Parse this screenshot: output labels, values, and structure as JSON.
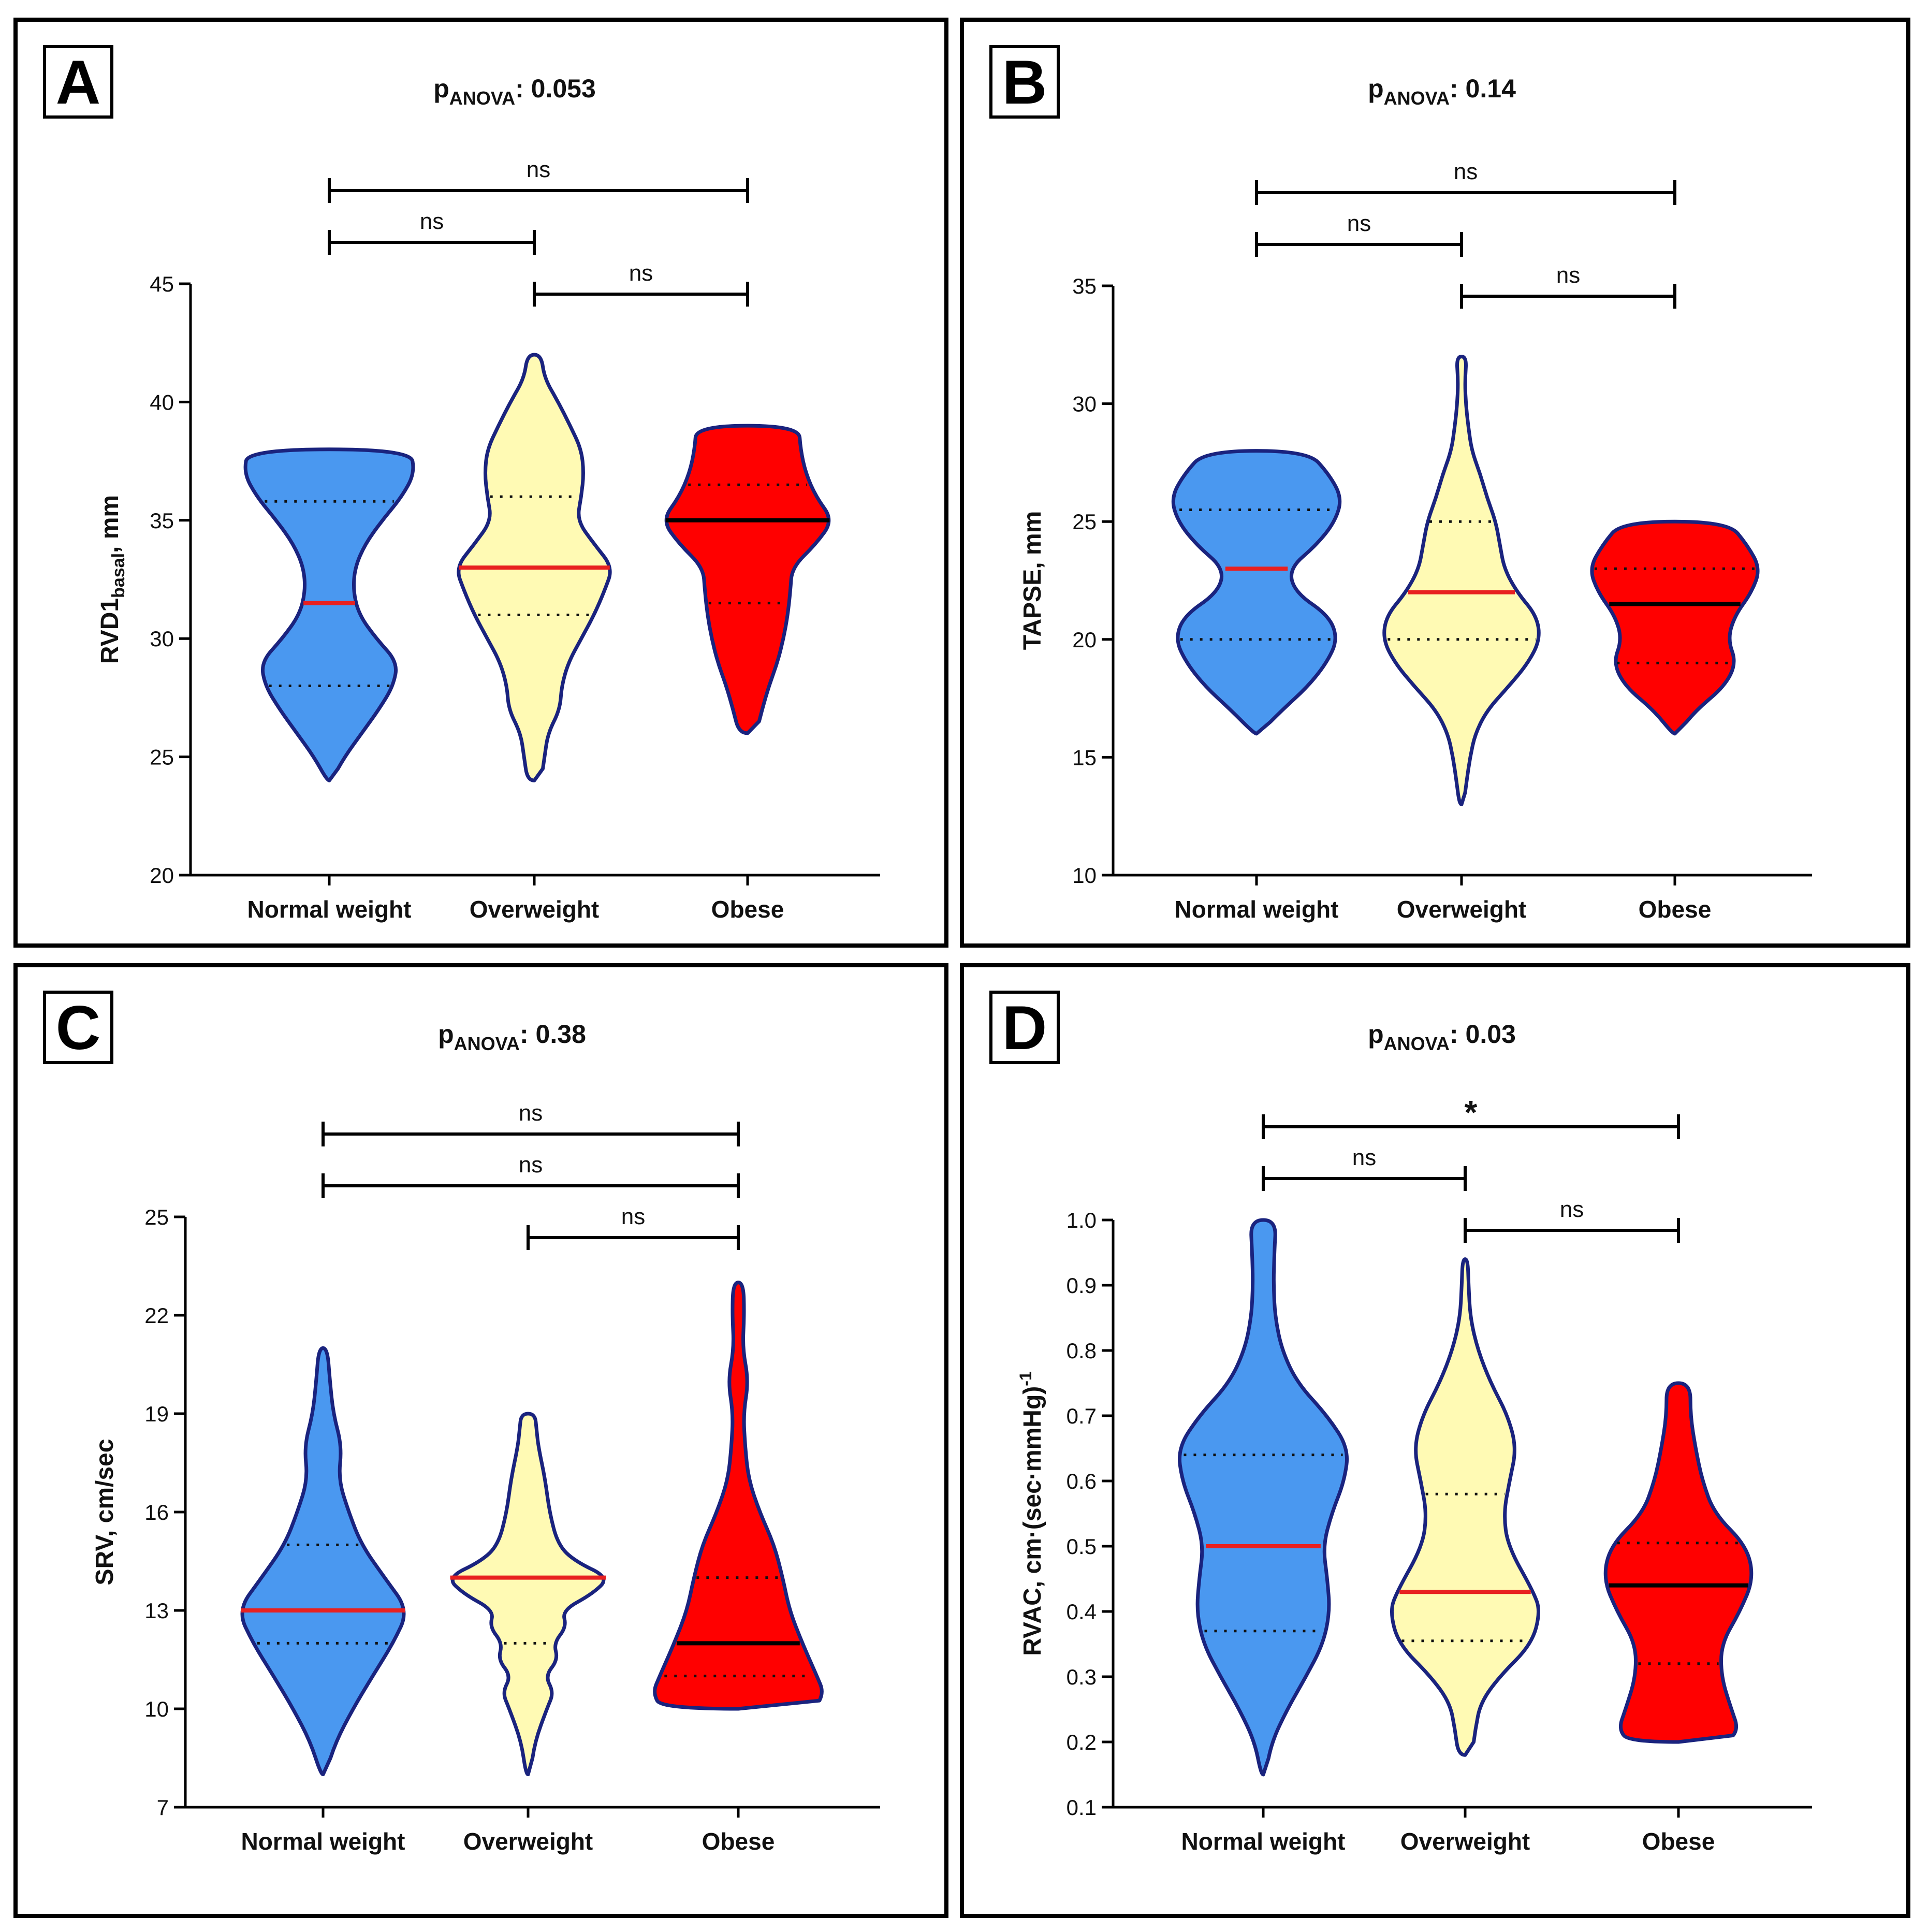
{
  "colors": {
    "normal_fill": "#4A98F0",
    "over_fill": "#FFFAB4",
    "obese_fill": "#FF0000",
    "outline": "#1A237E",
    "median_red": "#E82020",
    "median_black": "#000000",
    "quartile": "#111111"
  },
  "chart_data": [
    {
      "type": "violin",
      "panel": "A",
      "title_main": "p",
      "title_sub": "ANOVA",
      "title_value": ": 0.053",
      "ylabel_main": "RVD1",
      "ylabel_sub": "basal",
      "ylabel_suffix": ", mm",
      "ylabel_sup": "",
      "ylim": [
        20,
        45
      ],
      "yticks": [
        20,
        25,
        30,
        35,
        40,
        45
      ],
      "ytick_labels": [
        "20",
        "25",
        "30",
        "35",
        "40",
        "45"
      ],
      "categories": [
        "Normal weight",
        "Overweight",
        "Obese"
      ],
      "groups": [
        {
          "min": 24,
          "max": 38,
          "median": 31.5,
          "q1": 28,
          "q3": 35.8,
          "median_color": "red",
          "profile": [
            [
              24,
              0.0
            ],
            [
              25,
              0.18
            ],
            [
              26,
              0.38
            ],
            [
              27,
              0.58
            ],
            [
              28,
              0.75
            ],
            [
              29,
              0.8
            ],
            [
              30,
              0.55
            ],
            [
              31,
              0.35
            ],
            [
              32,
              0.28
            ],
            [
              33,
              0.3
            ],
            [
              34,
              0.42
            ],
            [
              35,
              0.62
            ],
            [
              36,
              0.85
            ],
            [
              37,
              1.0
            ],
            [
              38,
              0.95
            ]
          ]
        },
        {
          "min": 24,
          "max": 42,
          "median": 33,
          "q1": 31,
          "q3": 36,
          "median_color": "red",
          "profile": [
            [
              24,
              0.08
            ],
            [
              25,
              0.12
            ],
            [
              26,
              0.16
            ],
            [
              27,
              0.3
            ],
            [
              28,
              0.32
            ],
            [
              29,
              0.4
            ],
            [
              30,
              0.55
            ],
            [
              31,
              0.7
            ],
            [
              32,
              0.82
            ],
            [
              33,
              0.92
            ],
            [
              34,
              0.7
            ],
            [
              35,
              0.5
            ],
            [
              36,
              0.55
            ],
            [
              37,
              0.58
            ],
            [
              38,
              0.55
            ],
            [
              39,
              0.42
            ],
            [
              40,
              0.28
            ],
            [
              41,
              0.12
            ],
            [
              42,
              0.08
            ]
          ]
        },
        {
          "min": 26,
          "max": 39,
          "median": 35,
          "q1": 31.5,
          "q3": 36.5,
          "median_color": "black",
          "profile": [
            [
              26,
              0.1
            ],
            [
              27,
              0.17
            ],
            [
              28,
              0.25
            ],
            [
              29,
              0.35
            ],
            [
              30,
              0.42
            ],
            [
              31,
              0.47
            ],
            [
              32,
              0.5
            ],
            [
              33,
              0.52
            ],
            [
              34,
              0.8
            ],
            [
              35,
              1.0
            ],
            [
              36,
              0.8
            ],
            [
              37,
              0.68
            ],
            [
              38,
              0.62
            ],
            [
              39,
              0.6
            ]
          ]
        }
      ],
      "comparisons": [
        {
          "from": 0,
          "to": 2,
          "label": "ns"
        },
        {
          "from": 0,
          "to": 1,
          "label": "ns"
        },
        {
          "from": 1,
          "to": 2,
          "label": "ns"
        }
      ]
    },
    {
      "type": "violin",
      "panel": "B",
      "title_main": "p",
      "title_sub": "ANOVA",
      "title_value": ": 0.14",
      "ylabel_main": "TAPSE, mm",
      "ylabel_sub": "",
      "ylabel_suffix": "",
      "ylabel_sup": "",
      "ylim": [
        10,
        35
      ],
      "yticks": [
        10,
        15,
        20,
        25,
        30,
        35
      ],
      "ytick_labels": [
        "10",
        "15",
        "20",
        "25",
        "30",
        "35"
      ],
      "categories": [
        "Normal weight",
        "Overweight",
        "Obese"
      ],
      "groups": [
        {
          "min": 16,
          "max": 28,
          "median": 23,
          "q1": 20,
          "q3": 25.5,
          "median_color": "red",
          "profile": [
            [
              16,
              0.0
            ],
            [
              17,
              0.3
            ],
            [
              18,
              0.6
            ],
            [
              19,
              0.82
            ],
            [
              20,
              0.95
            ],
            [
              21,
              0.85
            ],
            [
              22,
              0.45
            ],
            [
              23,
              0.38
            ],
            [
              24,
              0.7
            ],
            [
              25,
              0.92
            ],
            [
              26,
              1.0
            ],
            [
              27,
              0.85
            ],
            [
              28,
              0.6
            ]
          ]
        },
        {
          "min": 13,
          "max": 32,
          "median": 22,
          "q1": 20,
          "q3": 25,
          "median_color": "red",
          "profile": [
            [
              13,
              0.0
            ],
            [
              14,
              0.06
            ],
            [
              15,
              0.1
            ],
            [
              16,
              0.16
            ],
            [
              17,
              0.3
            ],
            [
              18,
              0.55
            ],
            [
              19,
              0.78
            ],
            [
              20,
              0.92
            ],
            [
              21,
              0.88
            ],
            [
              22,
              0.65
            ],
            [
              23,
              0.5
            ],
            [
              24,
              0.45
            ],
            [
              25,
              0.4
            ],
            [
              26,
              0.3
            ],
            [
              27,
              0.22
            ],
            [
              28,
              0.12
            ],
            [
              29,
              0.08
            ],
            [
              30,
              0.05
            ],
            [
              31,
              0.04
            ],
            [
              32,
              0.06
            ]
          ]
        },
        {
          "min": 16,
          "max": 25,
          "median": 21.5,
          "q1": 19,
          "q3": 23,
          "median_color": "black",
          "profile": [
            [
              16,
              0.0
            ],
            [
              17,
              0.25
            ],
            [
              18,
              0.58
            ],
            [
              19,
              0.72
            ],
            [
              20,
              0.62
            ],
            [
              21,
              0.7
            ],
            [
              22,
              0.9
            ],
            [
              23,
              1.0
            ],
            [
              24,
              0.85
            ],
            [
              25,
              0.62
            ]
          ]
        }
      ],
      "comparisons": [
        {
          "from": 0,
          "to": 2,
          "label": "ns"
        },
        {
          "from": 0,
          "to": 1,
          "label": "ns"
        },
        {
          "from": 1,
          "to": 2,
          "label": "ns"
        }
      ]
    },
    {
      "type": "violin",
      "panel": "C",
      "title_main": "p",
      "title_sub": "ANOVA",
      "title_value": ": 0.38",
      "ylabel_main": "SRV, cm/sec",
      "ylabel_sub": "",
      "ylabel_suffix": "",
      "ylabel_sup": "",
      "ylim": [
        7,
        25
      ],
      "yticks": [
        7,
        10,
        13,
        16,
        19,
        22,
        25
      ],
      "ytick_labels": [
        "7",
        "10",
        "13",
        "16",
        "19",
        "22",
        "25"
      ],
      "categories": [
        "Normal weight",
        "Overweight",
        "Obese"
      ],
      "groups": [
        {
          "min": 8,
          "max": 21,
          "median": 13,
          "q1": 12,
          "q3": 15,
          "median_color": "red",
          "profile": [
            [
              8,
              0.0
            ],
            [
              9,
              0.15
            ],
            [
              10,
              0.35
            ],
            [
              11,
              0.58
            ],
            [
              12,
              0.82
            ],
            [
              13,
              1.0
            ],
            [
              14,
              0.72
            ],
            [
              15,
              0.45
            ],
            [
              16,
              0.3
            ],
            [
              17,
              0.18
            ],
            [
              18,
              0.22
            ],
            [
              19,
              0.12
            ],
            [
              20,
              0.08
            ],
            [
              21,
              0.05
            ]
          ]
        },
        {
          "min": 8,
          "max": 19,
          "median": 14,
          "q1": 12,
          "q3": 14,
          "median_color": "red",
          "profile": [
            [
              8,
              0.02
            ],
            [
              9,
              0.08
            ],
            [
              10,
              0.22
            ],
            [
              10.5,
              0.3
            ],
            [
              11,
              0.2
            ],
            [
              11.5,
              0.35
            ],
            [
              12,
              0.3
            ],
            [
              12.5,
              0.45
            ],
            [
              13,
              0.4
            ],
            [
              13.5,
              0.75
            ],
            [
              14,
              0.95
            ],
            [
              14.5,
              0.55
            ],
            [
              15,
              0.35
            ],
            [
              16,
              0.25
            ],
            [
              17,
              0.2
            ],
            [
              18,
              0.12
            ],
            [
              18.5,
              0.1
            ],
            [
              19,
              0.08
            ]
          ]
        },
        {
          "min": 10,
          "max": 23,
          "median": 12,
          "q1": 11,
          "q3": 14,
          "median_color": "black",
          "profile": [
            [
              10,
              0.9
            ],
            [
              10.5,
              1.0
            ],
            [
              11,
              0.92
            ],
            [
              12,
              0.75
            ],
            [
              13,
              0.6
            ],
            [
              14,
              0.52
            ],
            [
              15,
              0.42
            ],
            [
              16,
              0.25
            ],
            [
              17,
              0.12
            ],
            [
              18,
              0.08
            ],
            [
              19,
              0.06
            ],
            [
              20,
              0.12
            ],
            [
              21,
              0.05
            ],
            [
              22,
              0.07
            ],
            [
              23,
              0.06
            ]
          ]
        }
      ],
      "comparisons": [
        {
          "from": 0,
          "to": 2,
          "label": "ns"
        },
        {
          "from": 0,
          "to": 2,
          "label": "ns"
        },
        {
          "from": 1,
          "to": 2,
          "label": "ns"
        }
      ]
    },
    {
      "type": "violin",
      "panel": "D",
      "title_main": "p",
      "title_sub": "ANOVA",
      "title_value": ": 0.03",
      "ylabel_main": "RVAC, cm·(sec·mmHg)",
      "ylabel_sub": "",
      "ylabel_suffix": "",
      "ylabel_sup": "-1",
      "ylim": [
        0.1,
        1.0
      ],
      "yticks": [
        0.1,
        0.2,
        0.3,
        0.4,
        0.5,
        0.6,
        0.7,
        0.8,
        0.9,
        1.0
      ],
      "ytick_labels": [
        "0.1",
        "0.2",
        "0.3",
        "0.4",
        "0.5",
        "0.6",
        "0.7",
        "0.8",
        "0.9",
        "1.0"
      ],
      "categories": [
        "Normal weight",
        "Overweight",
        "Obese"
      ],
      "groups": [
        {
          "min": 0.15,
          "max": 1.0,
          "median": 0.5,
          "q1": 0.37,
          "q3": 0.64,
          "median_color": "red",
          "profile": [
            [
              0.15,
              0.0
            ],
            [
              0.2,
              0.1
            ],
            [
              0.25,
              0.28
            ],
            [
              0.3,
              0.5
            ],
            [
              0.35,
              0.7
            ],
            [
              0.4,
              0.78
            ],
            [
              0.45,
              0.75
            ],
            [
              0.5,
              0.7
            ],
            [
              0.55,
              0.8
            ],
            [
              0.6,
              0.95
            ],
            [
              0.65,
              1.0
            ],
            [
              0.7,
              0.75
            ],
            [
              0.75,
              0.4
            ],
            [
              0.8,
              0.22
            ],
            [
              0.85,
              0.14
            ],
            [
              0.9,
              0.12
            ],
            [
              0.95,
              0.13
            ],
            [
              1.0,
              0.15
            ]
          ]
        },
        {
          "min": 0.18,
          "max": 0.94,
          "median": 0.43,
          "q1": 0.355,
          "q3": 0.58,
          "median_color": "red",
          "profile": [
            [
              0.18,
              0.08
            ],
            [
              0.22,
              0.12
            ],
            [
              0.26,
              0.18
            ],
            [
              0.3,
              0.4
            ],
            [
              0.35,
              0.78
            ],
            [
              0.4,
              0.88
            ],
            [
              0.43,
              0.8
            ],
            [
              0.5,
              0.5
            ],
            [
              0.55,
              0.45
            ],
            [
              0.6,
              0.52
            ],
            [
              0.65,
              0.6
            ],
            [
              0.7,
              0.5
            ],
            [
              0.75,
              0.3
            ],
            [
              0.8,
              0.15
            ],
            [
              0.85,
              0.06
            ],
            [
              0.9,
              0.04
            ],
            [
              0.94,
              0.03
            ]
          ]
        },
        {
          "min": 0.2,
          "max": 0.75,
          "median": 0.44,
          "q1": 0.32,
          "q3": 0.505,
          "median_color": "black",
          "profile": [
            [
              0.2,
              0.58
            ],
            [
              0.22,
              0.7
            ],
            [
              0.25,
              0.62
            ],
            [
              0.3,
              0.5
            ],
            [
              0.35,
              0.5
            ],
            [
              0.4,
              0.72
            ],
            [
              0.45,
              0.88
            ],
            [
              0.5,
              0.8
            ],
            [
              0.55,
              0.42
            ],
            [
              0.6,
              0.28
            ],
            [
              0.65,
              0.2
            ],
            [
              0.7,
              0.14
            ],
            [
              0.75,
              0.14
            ]
          ]
        }
      ],
      "comparisons": [
        {
          "from": 0,
          "to": 2,
          "label": "*"
        },
        {
          "from": 0,
          "to": 1,
          "label": "ns"
        },
        {
          "from": 1,
          "to": 2,
          "label": "ns"
        }
      ]
    }
  ]
}
